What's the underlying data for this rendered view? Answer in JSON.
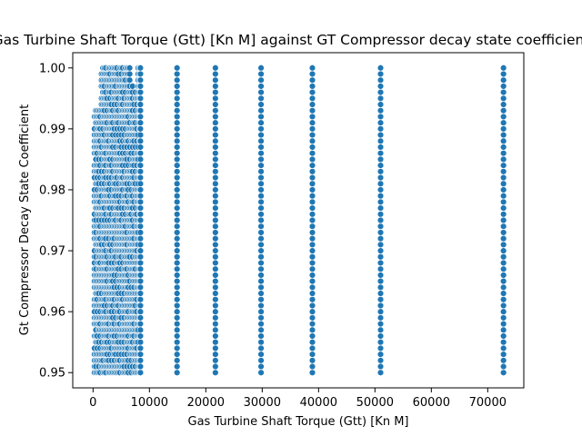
{
  "chart_data": {
    "type": "scatter",
    "title": "Gas Turbine Shaft Torque (Gtt) [Kn M] against GT Compressor decay state coefficient",
    "xlabel": "Gas Turbine Shaft Torque (Gtt) [Kn M]",
    "ylabel": "Gt Compressor Decay State Coefficient",
    "xlim": [
      -3600,
      76400
    ],
    "ylim": [
      0.9475,
      1.0025
    ],
    "xticks": [
      0,
      10000,
      20000,
      30000,
      40000,
      50000,
      60000,
      70000
    ],
    "xtick_labels": [
      "0",
      "10000",
      "20000",
      "30000",
      "40000",
      "50000",
      "60000",
      "70000"
    ],
    "yticks": [
      0.95,
      0.96,
      0.97,
      0.98,
      0.99,
      1.0
    ],
    "ytick_labels": [
      "0.95",
      "0.96",
      "0.97",
      "0.98",
      "0.99",
      "1.00"
    ],
    "grid": false,
    "marker_color": "#1f77b4",
    "y_levels": {
      "start": 0.95,
      "end": 1.0,
      "step": 0.001
    },
    "dense_region": {
      "x_min": 250,
      "x_max": 8500,
      "column_count": 34
    },
    "columns": [
      {
        "x": 8400
      },
      {
        "x": 14900
      },
      {
        "x": 21700
      },
      {
        "x": 29800
      },
      {
        "x": 38900
      },
      {
        "x": 51000
      },
      {
        "x": 72800
      }
    ]
  }
}
